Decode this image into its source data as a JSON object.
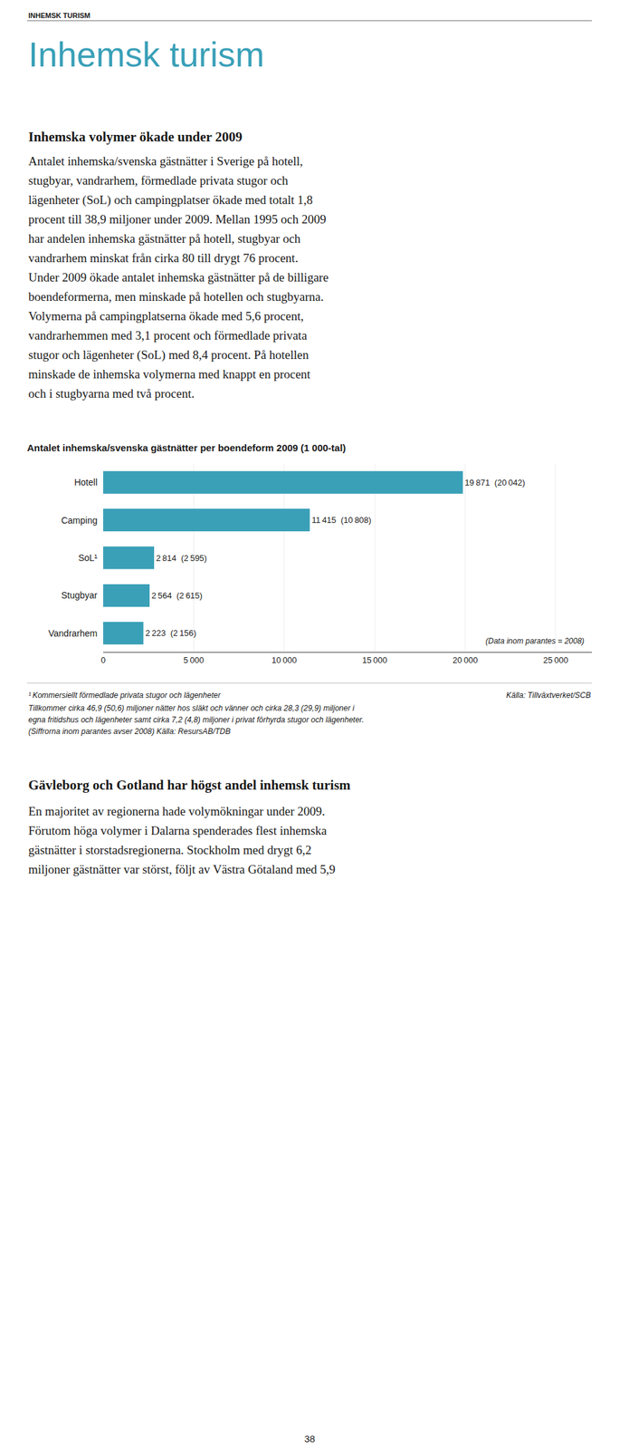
{
  "page": {
    "header": "INHEMSK TURISM",
    "title": "Inhemsk turism",
    "title_color": "#3aa0b8",
    "section1_title": "Inhemska volymer ökade under 2009",
    "section1_lines": [
      "Antalet inhemska/svenska gästnätter i Sverige på hotell,",
      "stugbyar, vandrarhem, förmedlade privata stugor och",
      "lägenheter (SoL) och campingplatser ökade med totalt 1,8",
      "procent till 38,9 miljoner under 2009. Mellan 1995 och 2009",
      "har andelen inhemska gästnätter på hotell, stugbyar och",
      "vandrarhem minskat från cirka 80 till drygt 76 procent.",
      "Under 2009 ökade antalet inhemska gästnätter på de billigare",
      "boendeformerna, men minskade på hotellen och stugbyarna.",
      "Volymerna på campingplatserna ökade med 5,6 procent,",
      "vandrarhemmen med 3,1 procent och förmedlade privata",
      "stugor och lägenheter (SoL) med 8,4 procent. På hotellen",
      "minskade de inhemska volymerna med knappt en procent",
      "och i stugbyarna med två procent."
    ],
    "footnotes": [
      "¹ Kommersiellt förmedlade privata stugor och lägenheter",
      "Källa: Tillväxtverket/SCB",
      "Tillkommer cirka 46,9 (50,6) miljoner nätter hos släkt och vänner och cirka 28,3 (29,9) miljoner i",
      "egna fritidshus och lägenheter samt cirka 7,2 (4,8) miljoner i privat förhyrda stugor och lägenheter.",
      "(Siffrorna inom parantes avser 2008) Källa: ResursAB/TDB"
    ],
    "section2_title": "Gävleborg och Gotland har högst andel inhemsk turism",
    "section2_lines": [
      "En majoritet av regionerna hade volymökningar under 2009.",
      "Förutom höga volymer i Dalarna spenderades flest inhemska",
      "gästnätter i storstadsregionerna. Stockholm med drygt 6,2",
      "miljoner gästnätter var störst, följt av Västra Götaland med 5,9"
    ],
    "page_number": "38"
  },
  "chart_data": {
    "type": "bar",
    "orientation": "horizontal",
    "title": "Antalet inhemska/svenska gästnätter per boendeform 2009 (1 000-tal)",
    "categories": [
      "Hotell",
      "Camping",
      "SoL¹",
      "Stugbyar",
      "Vandrarhem"
    ],
    "values": [
      19871,
      11415,
      2814,
      2564,
      2223
    ],
    "value_labels": [
      "19 871  (20 042)",
      "11 415  (10 808)",
      "2 814  (2 595)",
      "2 564  (2 615)",
      "2 223  (2 156)"
    ],
    "data_labels": true,
    "color": "#3aa0b8",
    "xlim": [
      0,
      27000
    ],
    "xticks": [
      0,
      {
        "value": 5000,
        "label": "5 000"
      },
      {
        "value": 10000,
        "label": "10 000"
      },
      {
        "value": 15000,
        "label": "15 000"
      },
      {
        "value": 20000,
        "label": "20 000"
      },
      {
        "value": 25000,
        "label": "25 000"
      }
    ],
    "grid": true,
    "annotations": [
      "(Data inom parantes = 2008)"
    ]
  }
}
